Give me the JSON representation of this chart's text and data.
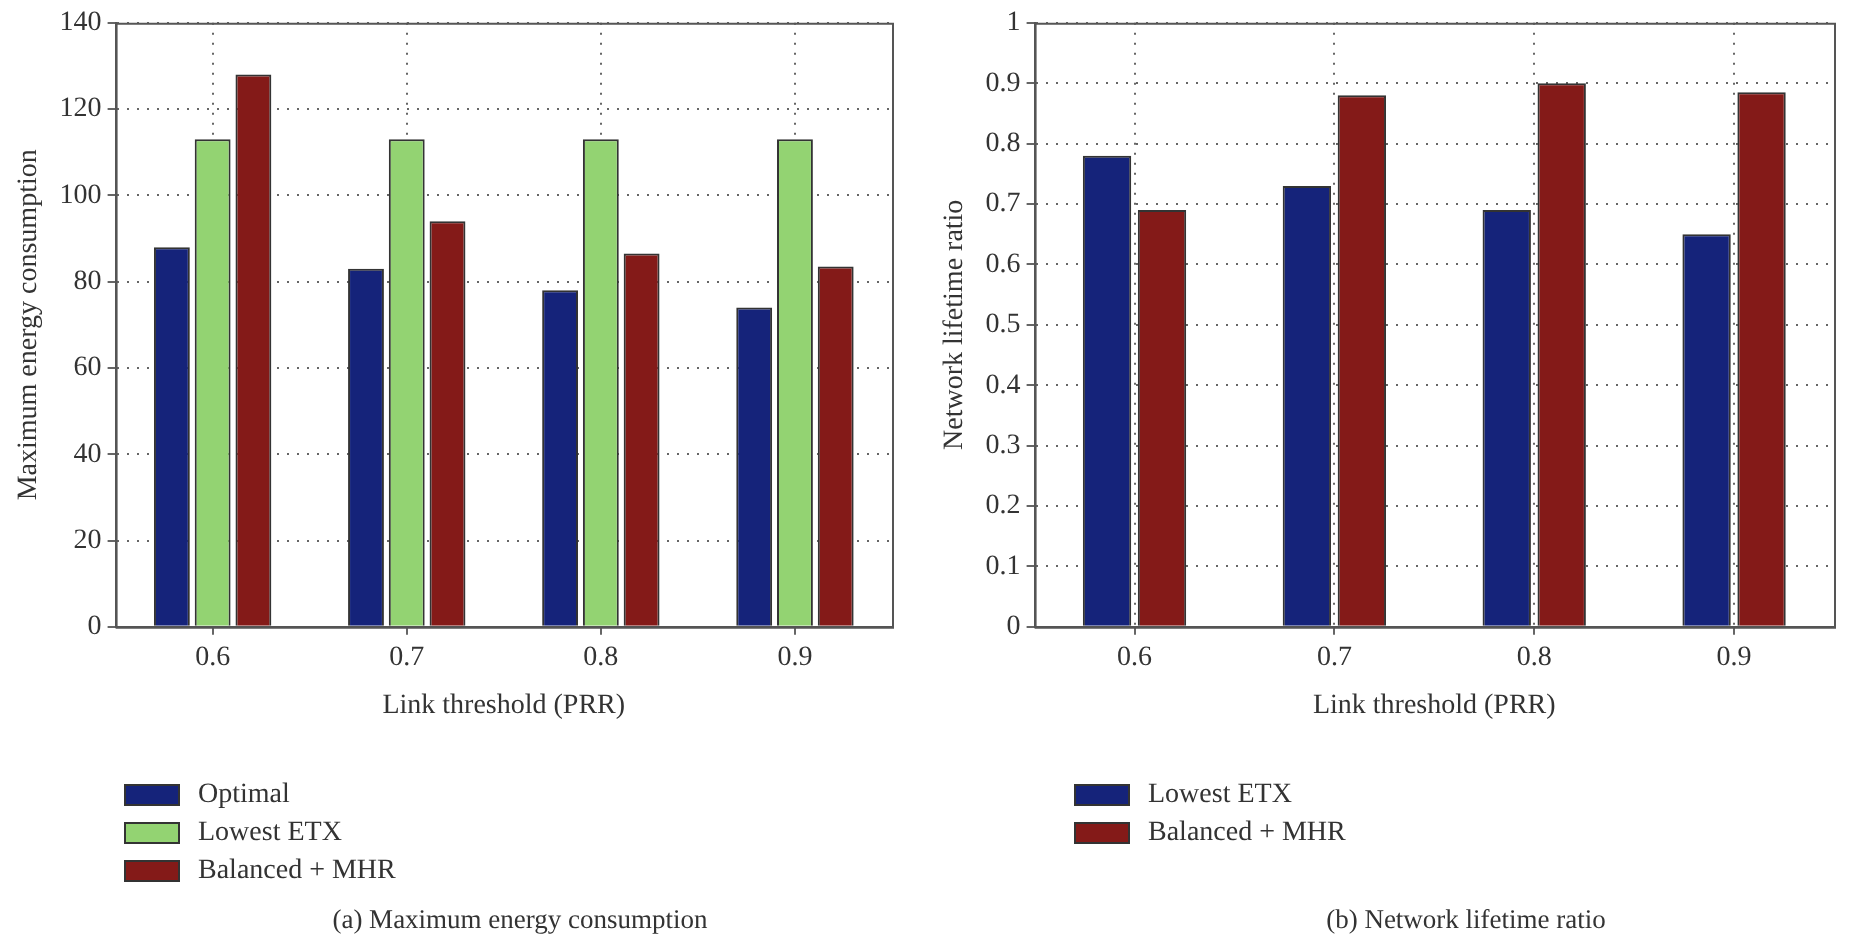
{
  "chart_data": [
    {
      "type": "bar",
      "xlabel": "Link threshold (PRR)",
      "ylabel": "Maximum energy consumption",
      "categories": [
        "0.6",
        "0.7",
        "0.8",
        "0.9"
      ],
      "series": [
        {
          "name": "Optimal",
          "color": "#15237a",
          "values": [
            88,
            83,
            78,
            74
          ]
        },
        {
          "name": "Lowest ETX",
          "color": "#93d372",
          "values": [
            113,
            113,
            113,
            113
          ]
        },
        {
          "name": "Balanced + MHR",
          "color": "#841a18",
          "values": [
            128,
            94,
            86.5,
            83.5
          ]
        }
      ],
      "ylim": [
        0,
        140
      ],
      "yticks": [
        0,
        20,
        40,
        60,
        80,
        100,
        120,
        140
      ],
      "grid": true,
      "legend": "bottom",
      "annotations": [
        "(a)  Maximum energy consumption"
      ]
    },
    {
      "type": "bar",
      "xlabel": "Link threshold (PRR)",
      "ylabel": "Network lifetime ratio",
      "categories": [
        "0.6",
        "0.7",
        "0.8",
        "0.9"
      ],
      "series": [
        {
          "name": "Lowest ETX",
          "color": "#15237a",
          "values": [
            0.78,
            0.73,
            0.69,
            0.65
          ]
        },
        {
          "name": "Balanced + MHR",
          "color": "#841a18",
          "values": [
            0.69,
            0.88,
            0.9,
            0.885
          ]
        }
      ],
      "ylim": [
        0,
        1
      ],
      "yticks": [
        0,
        0.1,
        0.2,
        0.3,
        0.4,
        0.5,
        0.6,
        0.7,
        0.8,
        0.9,
        1
      ],
      "grid": true,
      "legend": "bottom",
      "annotations": [
        "(b)  Network lifetime ratio"
      ]
    }
  ]
}
